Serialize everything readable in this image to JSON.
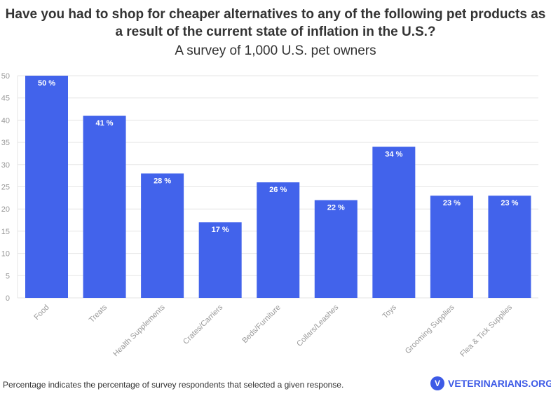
{
  "chart_data": {
    "type": "bar",
    "title": "Have you had to shop for cheaper alternatives to any of the following pet products as a result of the current state of inflation in the U.S.?",
    "subtitle": "A survey of 1,000 U.S. pet owners",
    "categories": [
      "Food",
      "Treats",
      "Health Supplements",
      "Crates/Carriers",
      "Beds/Furniture",
      "Collars/Leashes",
      "Toys",
      "Grooming Supplies",
      "Flea & Tick Supplies"
    ],
    "values": [
      50,
      41,
      28,
      17,
      26,
      22,
      34,
      23,
      23
    ],
    "data_label_suffix": " %",
    "ylim": [
      0,
      50
    ],
    "yticks": [
      0,
      5,
      10,
      15,
      20,
      25,
      30,
      35,
      40,
      45,
      50
    ],
    "grid": true,
    "bar_color": "#4263eb"
  },
  "footer": {
    "note": "Percentage indicates the percentage of survey respondents that selected a given response.",
    "logo_text": "VETERINARIANS.ORG"
  }
}
